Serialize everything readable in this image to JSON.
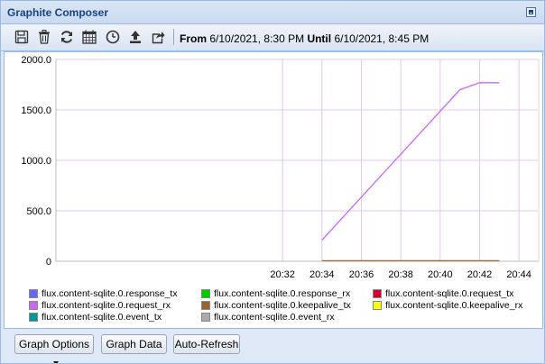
{
  "window": {
    "title": "Graphite Composer"
  },
  "toolbar": {
    "icons": [
      "save-icon",
      "trash-icon",
      "refresh-icon",
      "calendar-icon",
      "clock-icon",
      "upload-icon",
      "share-icon"
    ],
    "from_label": "From",
    "from_value": "6/10/2021, 8:30 PM",
    "until_label": "Until",
    "until_value": "6/10/2021, 8:45 PM"
  },
  "buttons": {
    "graph_options": "Graph Options",
    "graph_data": "Graph Data",
    "auto_refresh": "Auto-Refresh"
  },
  "chart_data": {
    "type": "line",
    "x_ticks": [
      "20:32",
      "20:34",
      "20:36",
      "20:38",
      "20:40",
      "20:42",
      "20:44"
    ],
    "y_ticks": [
      "0",
      "500.0",
      "1000.0",
      "1500.0",
      "2000.0"
    ],
    "ylim": [
      0,
      2000
    ],
    "xlim_minutes": [
      20.5,
      45
    ],
    "grid": true,
    "series": [
      {
        "name": "flux.content-sqlite.0.response_tx",
        "color": "#6666ff",
        "x": [],
        "y": []
      },
      {
        "name": "flux.content-sqlite.0.response_rx",
        "color": "#00cc00",
        "x": [],
        "y": []
      },
      {
        "name": "flux.content-sqlite.0.request_tx",
        "color": "#cc0033",
        "x": [],
        "y": []
      },
      {
        "name": "flux.content-sqlite.0.request_rx",
        "color": "#cc66ff",
        "x": [
          "20:34",
          "20:41",
          "20:42",
          "20:43"
        ],
        "y": [
          210,
          1700,
          1770,
          1770
        ]
      },
      {
        "name": "flux.content-sqlite.0.keepalive_tx",
        "color": "#996633",
        "x": [
          "20:34",
          "20:43"
        ],
        "y": [
          5,
          5
        ]
      },
      {
        "name": "flux.content-sqlite.0.keepalive_rx",
        "color": "#ffff00",
        "x": [],
        "y": []
      },
      {
        "name": "flux.content-sqlite.0.event_tx",
        "color": "#009999",
        "x": [],
        "y": []
      },
      {
        "name": "flux.content-sqlite.0.event_rx",
        "color": "#aaaaaa",
        "x": [],
        "y": []
      }
    ]
  }
}
